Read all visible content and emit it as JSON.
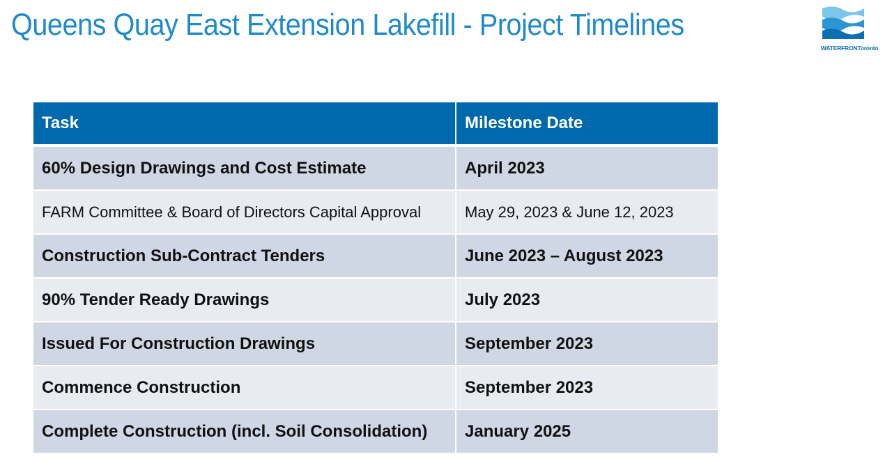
{
  "header": {
    "title": "Queens Quay East Extension Lakefill - Project Timelines"
  },
  "logo": {
    "text": "WATERFRONToronto",
    "brand_color": "#0b6fb0"
  },
  "table": {
    "columns": [
      "Task",
      "Milestone Date"
    ],
    "rows": [
      {
        "task": "60% Design Drawings and Cost Estimate",
        "date": "April 2023"
      },
      {
        "task": "FARM Committee & Board of Directors Capital Approval",
        "date": "May 29, 2023 & June 12, 2023"
      },
      {
        "task": "Construction Sub-Contract Tenders",
        "date": "June 2023 – August 2023"
      },
      {
        "task": "90% Tender Ready Drawings",
        "date": "July 2023"
      },
      {
        "task": "Issued For Construction Drawings",
        "date": "September 2023"
      },
      {
        "task": "Commence Construction",
        "date": "September 2023"
      },
      {
        "task": "Complete Construction (incl. Soil Consolidation)",
        "date": "January 2025"
      }
    ]
  },
  "colors": {
    "title": "#1f8ac9",
    "header_bg": "#0068ad",
    "row_dark": "#cfd7e4",
    "row_light": "#e8ebf2"
  }
}
